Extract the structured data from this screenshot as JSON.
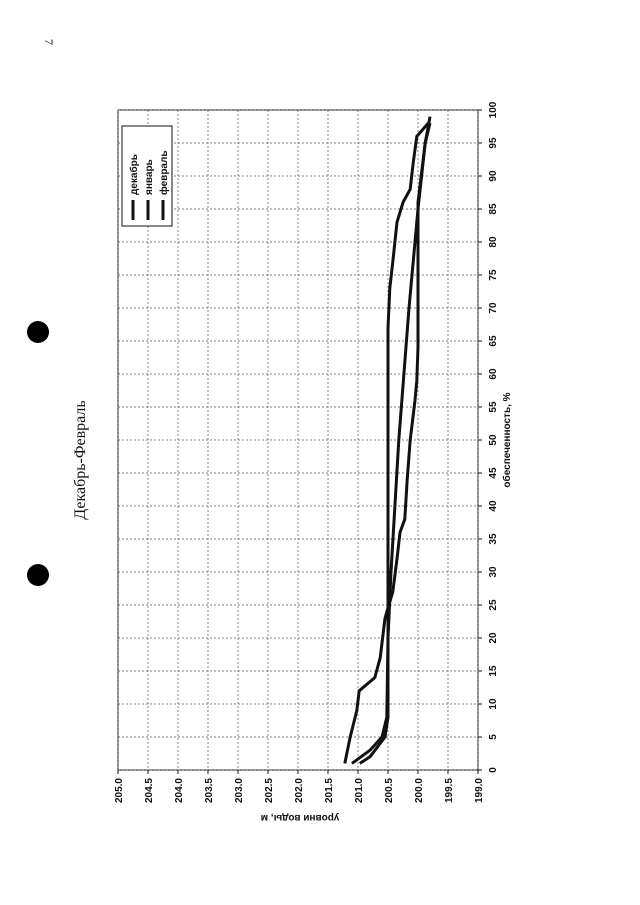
{
  "page_number": "7",
  "chart_data": {
    "type": "line",
    "title": "Декабрь-Февраль",
    "x_label": "обеспеченность, %",
    "y_label": "уровни воды, м",
    "xlim": [
      0,
      100
    ],
    "xticks": [
      0,
      5,
      10,
      15,
      20,
      25,
      30,
      35,
      40,
      45,
      50,
      55,
      60,
      65,
      70,
      75,
      80,
      85,
      90,
      95,
      100
    ],
    "ylim": [
      199,
      205
    ],
    "yticks": [
      {
        "value": 199,
        "label": "199.0"
      },
      199.5,
      {
        "value": 200,
        "label": "200.0"
      },
      200.5,
      {
        "value": 201,
        "label": "201.0"
      },
      201.5,
      {
        "value": 202,
        "label": "202.0"
      },
      202.5,
      {
        "value": 203,
        "label": "203.0"
      },
      203.5,
      {
        "value": 204,
        "label": "204.0"
      },
      204.5,
      {
        "value": 205,
        "label": "205.0"
      }
    ],
    "grid": true,
    "legend": "top-left",
    "series": [
      {
        "name": "декабрь",
        "color": "#111111",
        "x": [
          1,
          5,
          9,
          12,
          14,
          17,
          23,
          27,
          32,
          36,
          38,
          44,
          50,
          56,
          59,
          64,
          86,
          95,
          98
        ],
        "values": [
          201.22,
          201.13,
          201.02,
          200.98,
          200.72,
          200.63,
          200.55,
          200.42,
          200.35,
          200.3,
          200.22,
          200.18,
          200.13,
          200.05,
          200.02,
          200.0,
          200.0,
          199.88,
          199.8
        ]
      },
      {
        "name": "январь",
        "color": "#111111",
        "x": [
          1,
          2,
          5,
          8,
          48,
          59,
          67,
          73,
          77,
          83,
          86,
          88,
          92,
          96,
          98
        ],
        "values": [
          200.97,
          200.8,
          200.55,
          200.5,
          200.5,
          200.5,
          200.5,
          200.47,
          200.42,
          200.35,
          200.25,
          200.13,
          200.08,
          200.02,
          199.83
        ]
      },
      {
        "name": "февраль",
        "color": "#111111",
        "x": [
          1,
          3,
          5,
          8,
          20,
          30,
          50,
          70,
          85,
          95,
          99
        ],
        "values": [
          201.1,
          200.8,
          200.6,
          200.52,
          200.5,
          200.45,
          200.32,
          200.15,
          200.0,
          199.88,
          199.8
        ]
      }
    ]
  }
}
